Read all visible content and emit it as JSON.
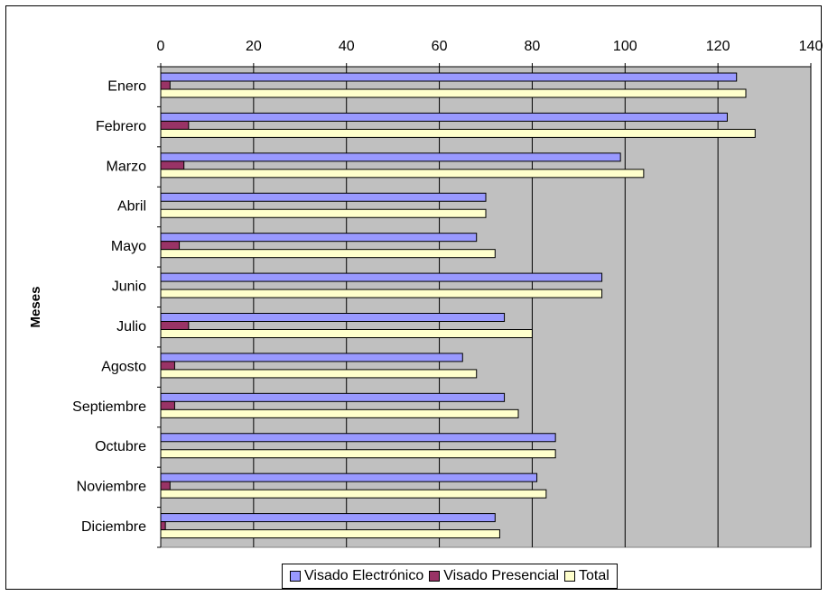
{
  "chart_data": {
    "type": "bar",
    "orientation": "horizontal",
    "categories": [
      "Enero",
      "Febrero",
      "Marzo",
      "Abril",
      "Mayo",
      "Junio",
      "Julio",
      "Agosto",
      "Septiembre",
      "Octubre",
      "Noviembre",
      "Diciembre"
    ],
    "series": [
      {
        "name": "Visado Electrónico",
        "color": "#9999ff",
        "values": [
          124,
          122,
          99,
          70,
          68,
          95,
          74,
          65,
          74,
          85,
          81,
          72
        ]
      },
      {
        "name": "Visado Presencial",
        "color": "#993366",
        "values": [
          2,
          6,
          5,
          0,
          4,
          0,
          6,
          3,
          3,
          0,
          2,
          1
        ]
      },
      {
        "name": "Total",
        "color": "#ffffcc",
        "values": [
          126,
          128,
          104,
          70,
          72,
          95,
          80,
          68,
          77,
          85,
          83,
          73
        ]
      }
    ],
    "xlim": [
      0,
      140
    ],
    "xticks": [
      0,
      20,
      40,
      60,
      80,
      100,
      120,
      140
    ],
    "xaxis_position": "top",
    "ylabel": "Meses",
    "xlabel": "",
    "title": "",
    "plot_background": "#c0c0c0",
    "grid": "vertical",
    "legend_position": "bottom"
  }
}
